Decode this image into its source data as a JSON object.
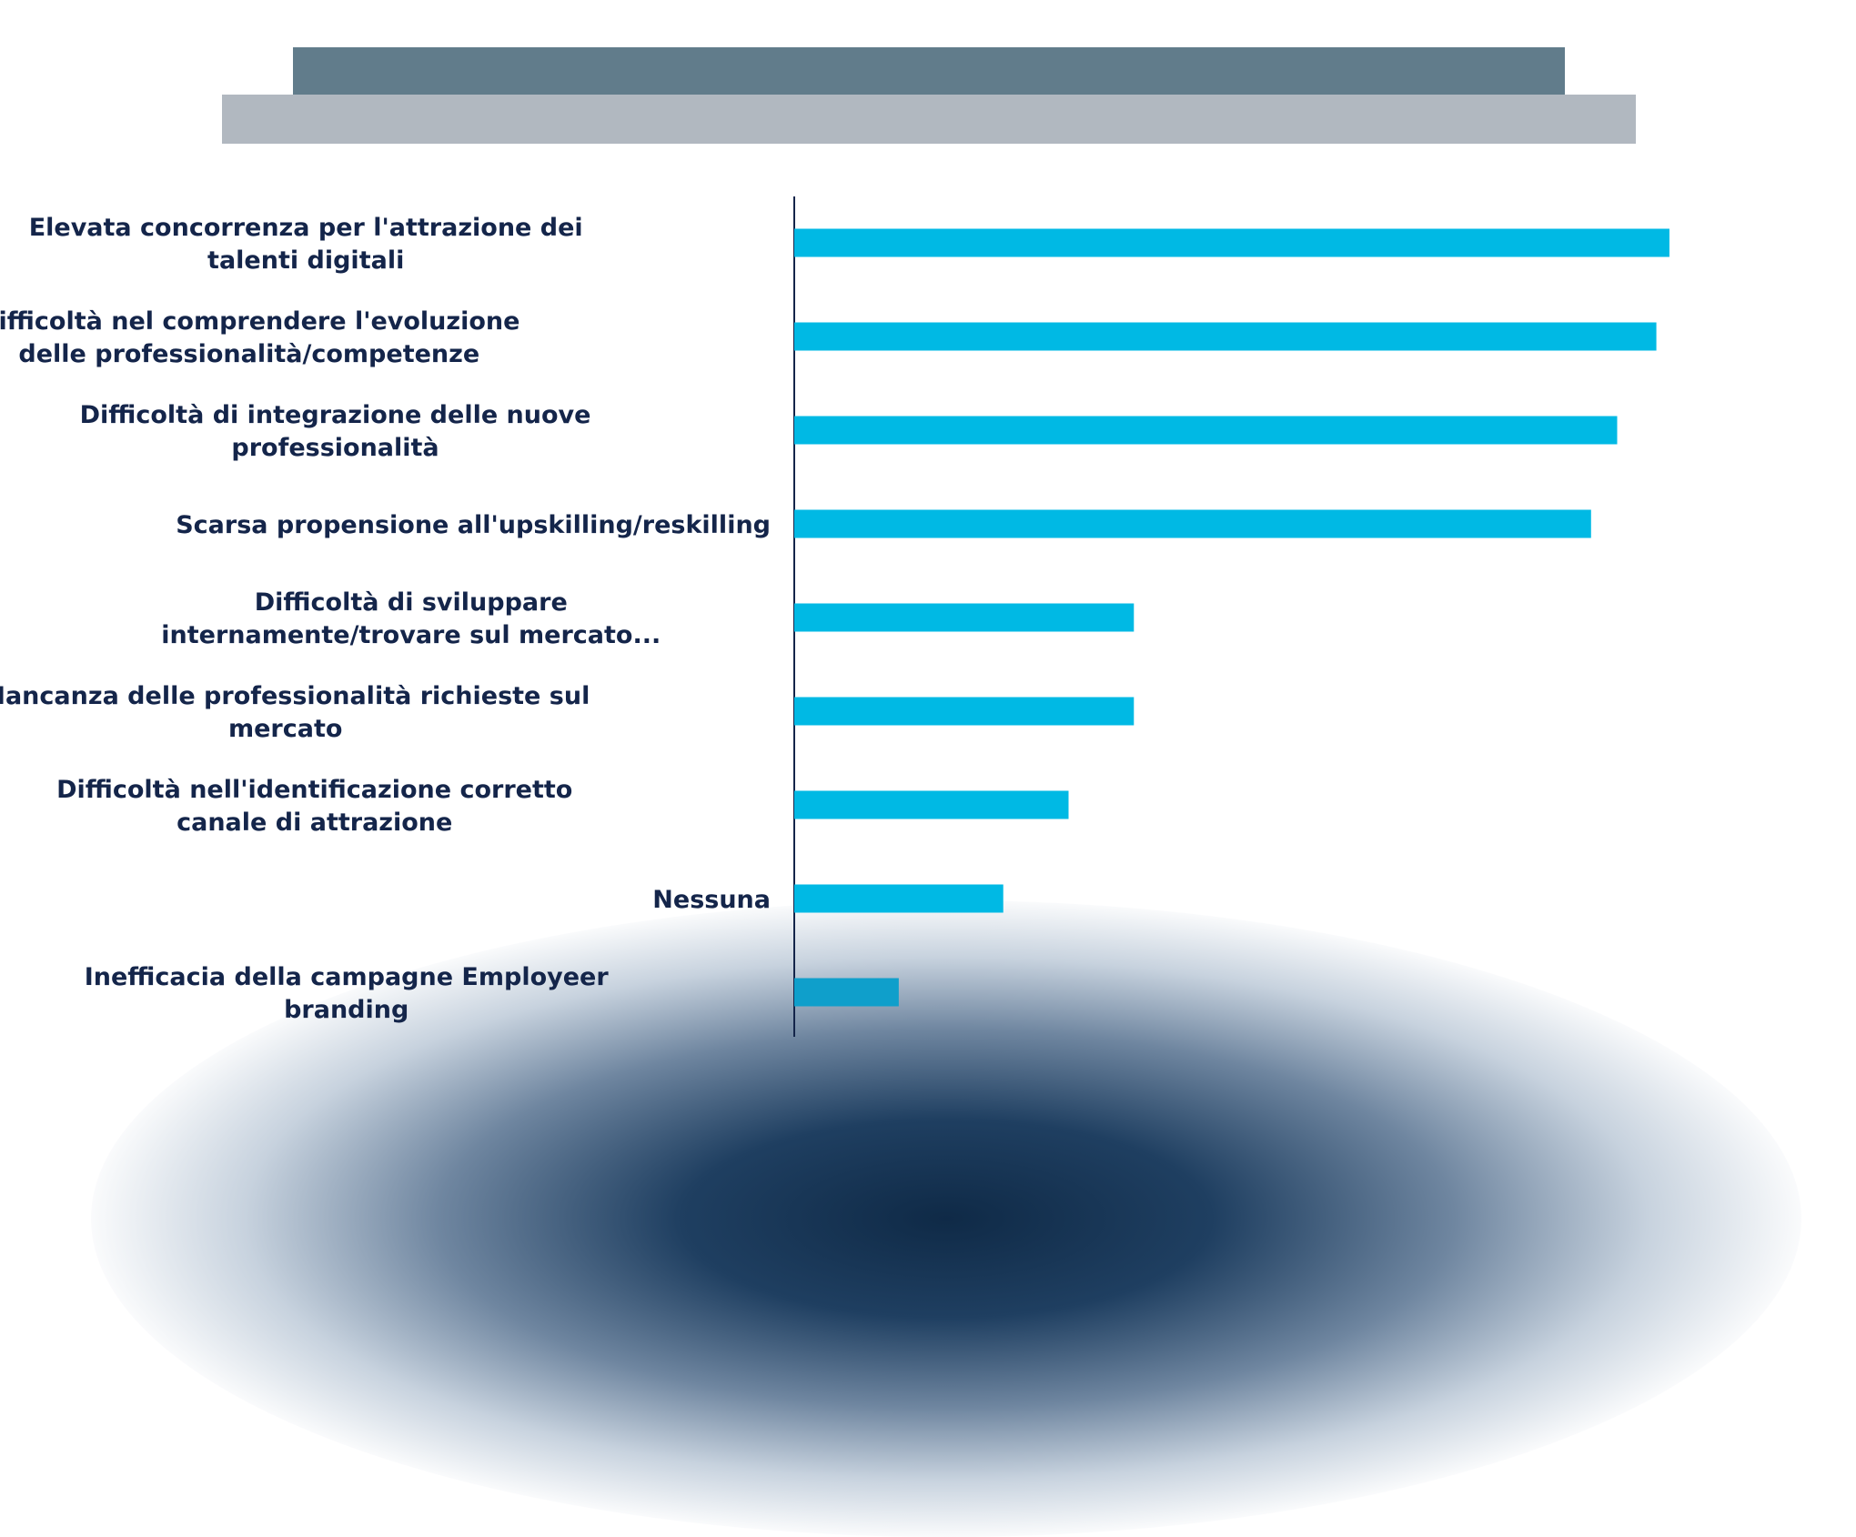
{
  "chart_data": {
    "type": "bar",
    "orientation": "horizontal",
    "title": "",
    "xlabel": "",
    "ylabel": "",
    "categories": [
      [
        "Elevata concorrenza per l'attrazione dei",
        "talenti digitali"
      ],
      [
        "Difficoltà nel comprendere l'evoluzione",
        "delle professionalità/competenze"
      ],
      [
        "Difficoltà di integrazione delle nuove",
        "professionalità"
      ],
      [
        "Scarsa propensione all'upskilling/reskilling"
      ],
      [
        "Difficoltà di sviluppare",
        "internamente/trovare sul mercato..."
      ],
      [
        "Mancanza delle professionalità richieste sul",
        "mercato"
      ],
      [
        "Difficoltà nell'identificazione corretto",
        "canale di attrazione"
      ],
      [
        "Nessuna"
      ],
      [
        "Inefficacia della campagne Employeer",
        "branding"
      ]
    ],
    "values": [
      67,
      66,
      63,
      61,
      26,
      26,
      21,
      16,
      8
    ],
    "xlim": [
      0,
      70
    ],
    "grid": false,
    "legend": "none",
    "bar_color": "#00b9e4",
    "last_bar_color": "#0f9fcb"
  },
  "colors": {
    "banner_top": "#617c8b",
    "banner_bottom": "#b1b8c0",
    "label_text": "#14254a",
    "axis": "#14254a"
  }
}
